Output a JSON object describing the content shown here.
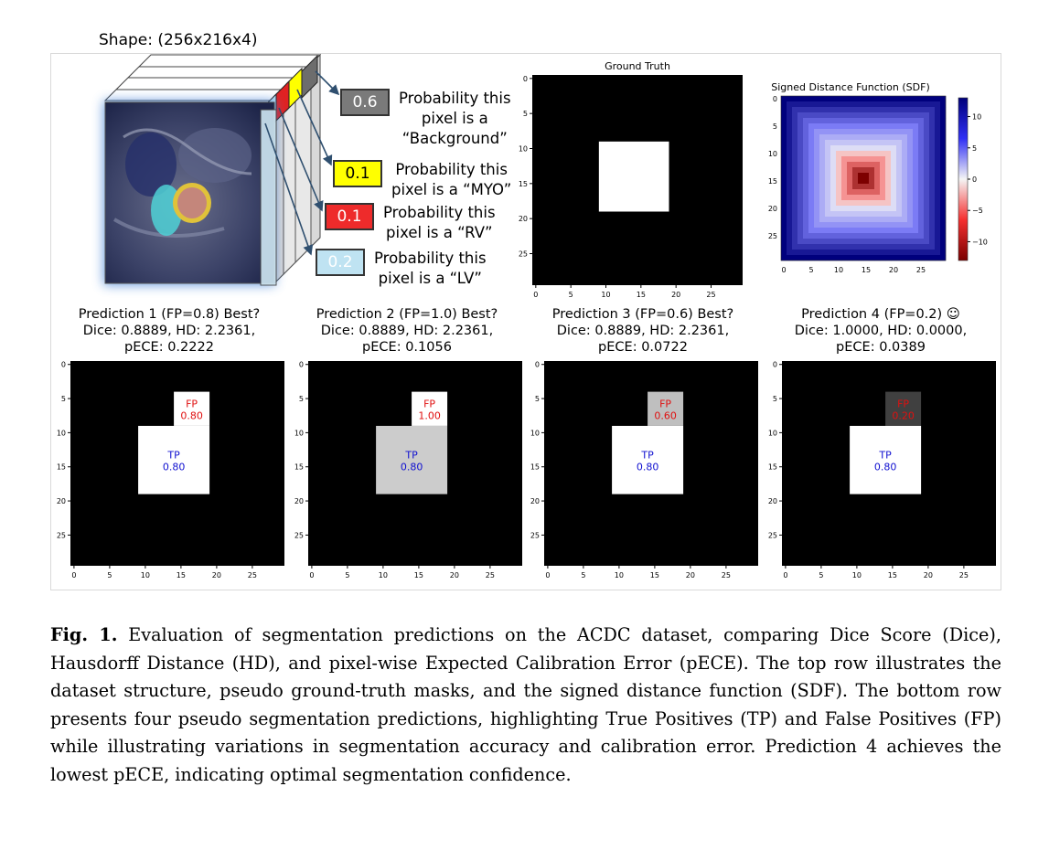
{
  "dataset_structure": {
    "shape_label": "Shape: (256x216x4)",
    "probabilities": [
      {
        "value": "0.6",
        "text_lines": [
          "Probability this",
          "pixel is a",
          "“Background”"
        ],
        "color": "#7a7a7a",
        "text_color": "#ffffff"
      },
      {
        "value": "0.1",
        "text_lines": [
          "Probability this",
          "pixel is a “MYO”"
        ],
        "color": "#ffff00",
        "text_color": "#000000"
      },
      {
        "value": "0.1",
        "text_lines": [
          "Probability this",
          "pixel is a “RV”"
        ],
        "color": "#ee2b2b",
        "text_color": "#ffffff"
      },
      {
        "value": "0.2",
        "text_lines": [
          "Probability this",
          "pixel is a “LV”"
        ],
        "color": "#bfe3f2",
        "text_color": "#ffffff"
      }
    ]
  },
  "ground_truth": {
    "title": "Ground Truth",
    "y_ticks": [
      "0",
      "5",
      "10",
      "15",
      "20",
      "25"
    ],
    "x_ticks": [
      "0",
      "5",
      "10",
      "15",
      "20",
      "25"
    ]
  },
  "sdf": {
    "title": "Signed Distance Function (SDF)",
    "y_ticks": [
      "0",
      "5",
      "10",
      "15",
      "20",
      "25"
    ],
    "x_ticks": [
      "0",
      "5",
      "10",
      "15",
      "20",
      "25"
    ],
    "colorbar_ticks": [
      "10",
      "5",
      "0",
      "−5",
      "−10"
    ]
  },
  "predictions": [
    {
      "title_lines": [
        "Prediction 1 (FP=0.8) Best?",
        "Dice: 0.8889, HD: 2.2361,",
        "pECE: 0.2222"
      ],
      "fp_label": "FP",
      "fp_value": "0.80",
      "tp_label": "TP",
      "tp_value": "0.80",
      "fp_gray": 1.0,
      "tp_gray": 1.0
    },
    {
      "title_lines": [
        "Prediction 2 (FP=1.0) Best?",
        "Dice: 0.8889, HD: 2.2361,",
        "pECE: 0.1056"
      ],
      "fp_label": "FP",
      "fp_value": "1.00",
      "tp_label": "TP",
      "tp_value": "0.80",
      "fp_gray": 1.0,
      "tp_gray": 0.8
    },
    {
      "title_lines": [
        "Prediction 3 (FP=0.6) Best?",
        "Dice: 0.8889, HD: 2.2361,",
        "pECE: 0.0722"
      ],
      "fp_label": "FP",
      "fp_value": "0.60",
      "tp_label": "TP",
      "tp_value": "0.80",
      "fp_gray": 0.75,
      "tp_gray": 1.0
    },
    {
      "title_lines": [
        "Prediction 4 (FP=0.2) ☺",
        "Dice: 1.0000, HD: 0.0000,",
        "pECE: 0.0389"
      ],
      "fp_label": "FP",
      "fp_value": "0.20",
      "tp_label": "TP",
      "tp_value": "0.80",
      "fp_gray": 0.25,
      "tp_gray": 1.0
    }
  ],
  "pred_ticks": {
    "y": [
      "0",
      "5",
      "10",
      "15",
      "20",
      "25"
    ],
    "x": [
      "0",
      "5",
      "10",
      "15",
      "20",
      "25"
    ]
  },
  "caption": {
    "label": "Fig. 1.",
    "text": "Evaluation of segmentation predictions on the ACDC dataset, comparing Dice Score (Dice), Hausdorff Distance (HD), and pixel-wise Expected Calibration Error (pECE). The top row illustrates the dataset structure, pseudo ground-truth masks, and the signed distance function (SDF). The bottom row presents four pseudo segmentation predictions, highlighting True Positives (TP) and False Positives (FP) while illustrating variations in segmentation accuracy and calibration error. Prediction 4 achieves the lowest pECE, indicating optimal segmentation confidence."
  }
}
